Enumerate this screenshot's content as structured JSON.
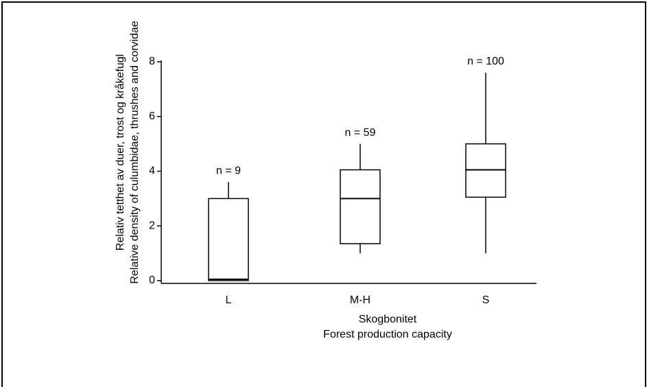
{
  "chart_data": {
    "type": "box",
    "categories": [
      "L",
      "M-H",
      "S"
    ],
    "series": [
      {
        "min": [
          0,
          1.0,
          1.0
        ],
        "q1": [
          0,
          1.35,
          3.05
        ],
        "median": [
          0.05,
          3.0,
          4.05
        ],
        "q3": [
          3.0,
          4.05,
          5.0
        ],
        "max": [
          3.6,
          5.0,
          7.6
        ],
        "color": "#000000"
      }
    ],
    "annotations": [
      "n = 9",
      "n = 59",
      "n = 100"
    ],
    "x_label": [
      "Skogbonitet",
      "Forest production capacity"
    ],
    "y_label": [
      "Relativ tetthet av duer, trost og kråkefugl",
      "Relative density of culumbidae, thrushes and corvidae"
    ],
    "ylim": [
      0,
      8
    ],
    "yticks": [
      0,
      2,
      4,
      6,
      8
    ]
  }
}
